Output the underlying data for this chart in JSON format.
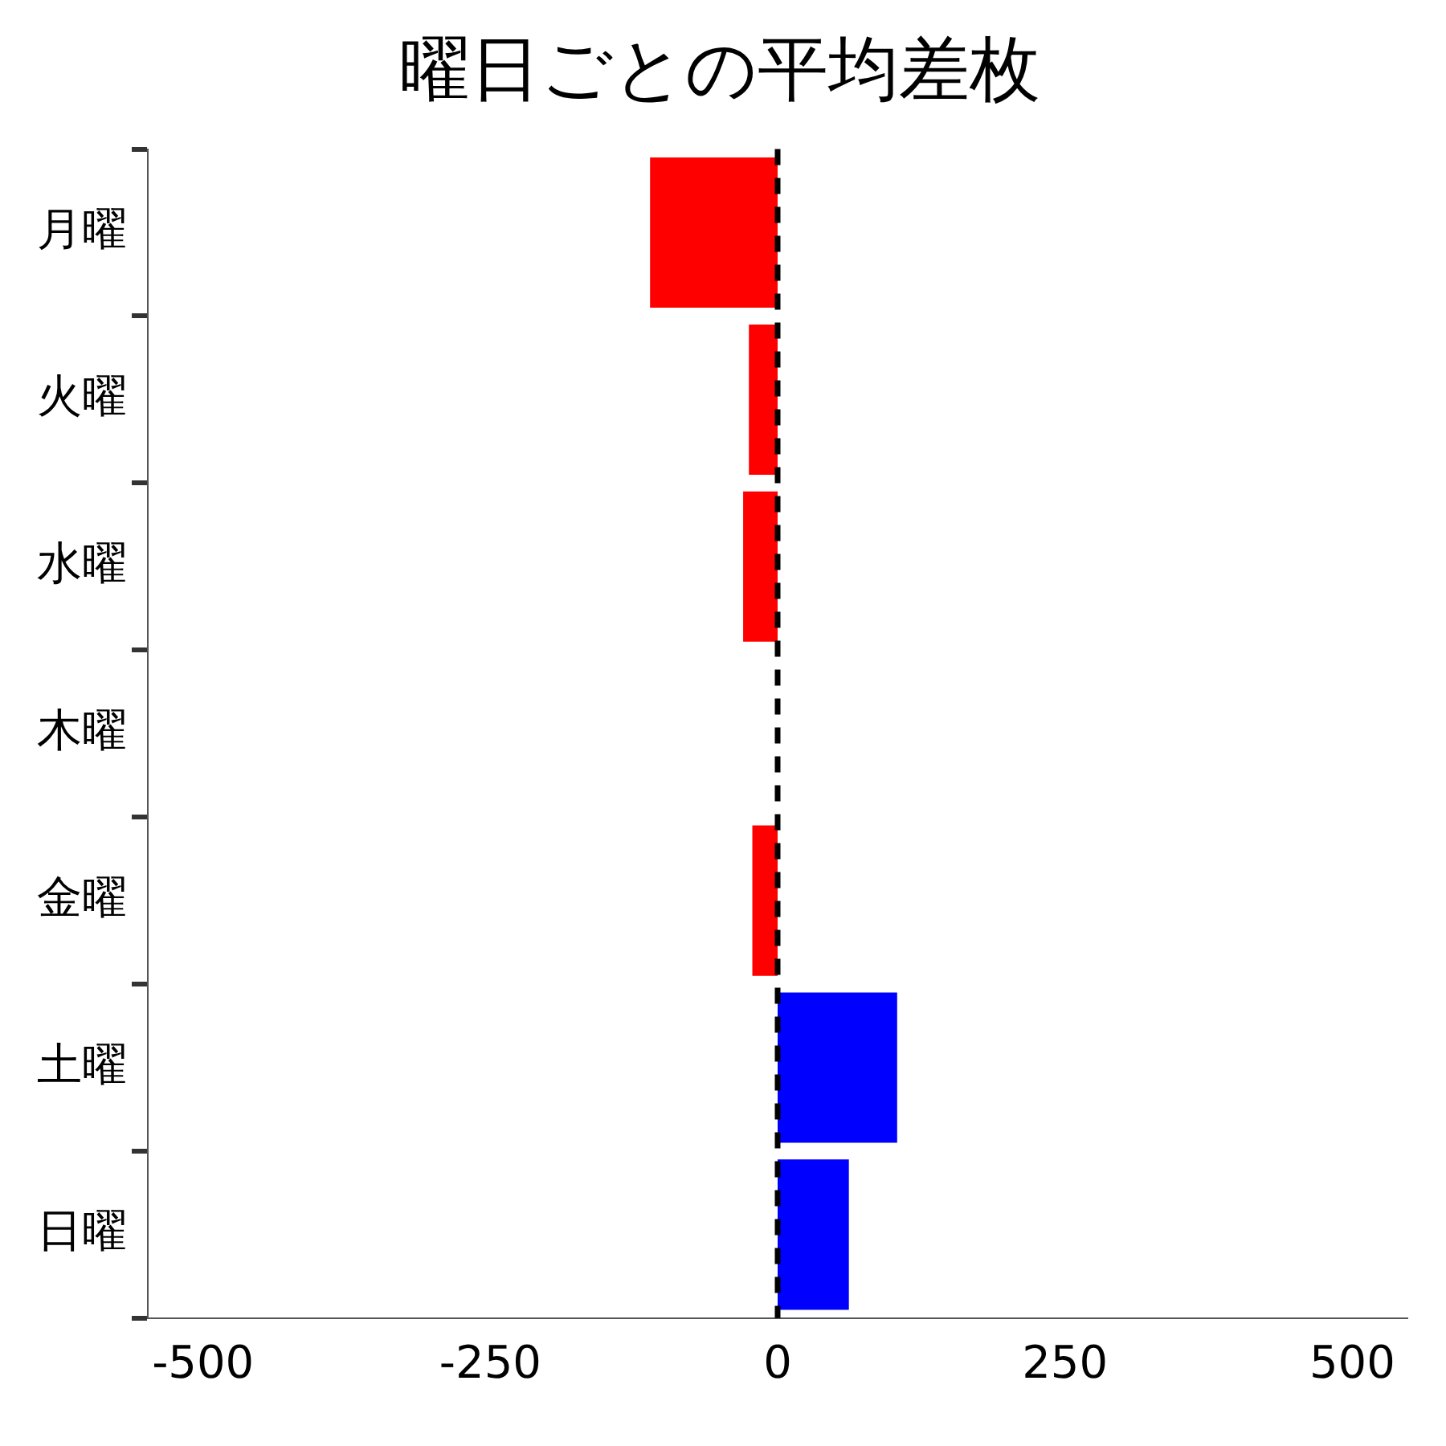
{
  "chart_data": {
    "type": "bar",
    "orientation": "horizontal",
    "title": "曜日ごとの平均差枚",
    "categories": [
      "月曜",
      "火曜",
      "水曜",
      "木曜",
      "金曜",
      "土曜",
      "日曜"
    ],
    "values": [
      -111,
      -25,
      -30,
      0,
      -22,
      104,
      62
    ],
    "colors": [
      "#ff0000",
      "#ff0000",
      "#ff0000",
      "#ff0000",
      "#ff0000",
      "#0000ff",
      "#0000ff"
    ],
    "xlim": [
      -548,
      548
    ],
    "xticks": [
      -500,
      -250,
      0,
      250,
      500
    ],
    "grid": false,
    "legend": false,
    "ref_lines": [
      {
        "axis": "x",
        "value": 0,
        "color": "#000000",
        "line_style": "dashed"
      }
    ]
  }
}
